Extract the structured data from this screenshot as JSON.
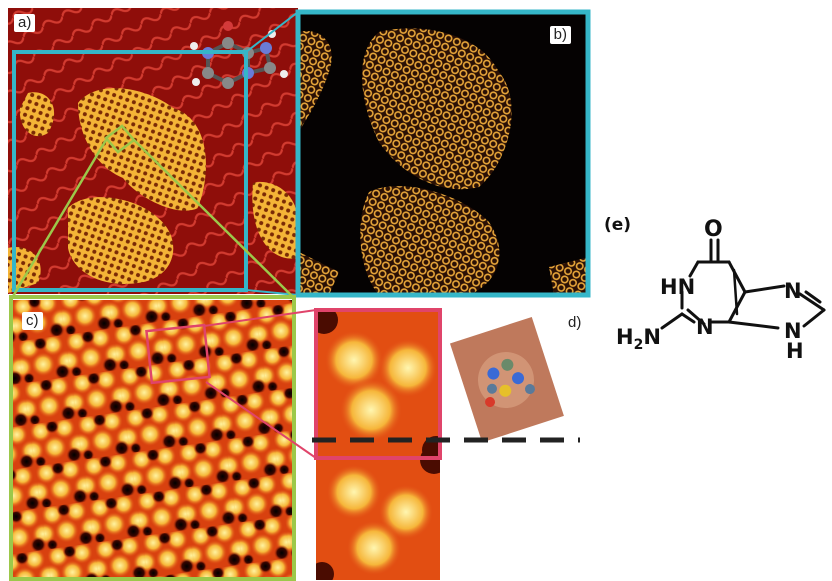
{
  "figure": {
    "panel_a": {
      "label": "a)"
    },
    "panel_b": {
      "label": "b)"
    },
    "panel_c": {
      "label": "c)"
    },
    "panel_d": {
      "label": "d)"
    },
    "panel_e": {
      "label": "(e)",
      "atoms": {
        "o": "O",
        "hn": "HN",
        "n_right_top": "N",
        "h2n": "H2N",
        "n_ring": "N",
        "nh": "NH"
      }
    }
  },
  "colors": {
    "cyan_box": "#35b6c8",
    "green_box": "#9cc84a",
    "pink_box": "#e0446a",
    "island": "#f7c54b",
    "background_red": "#a2120c",
    "background_black": "#050202"
  }
}
